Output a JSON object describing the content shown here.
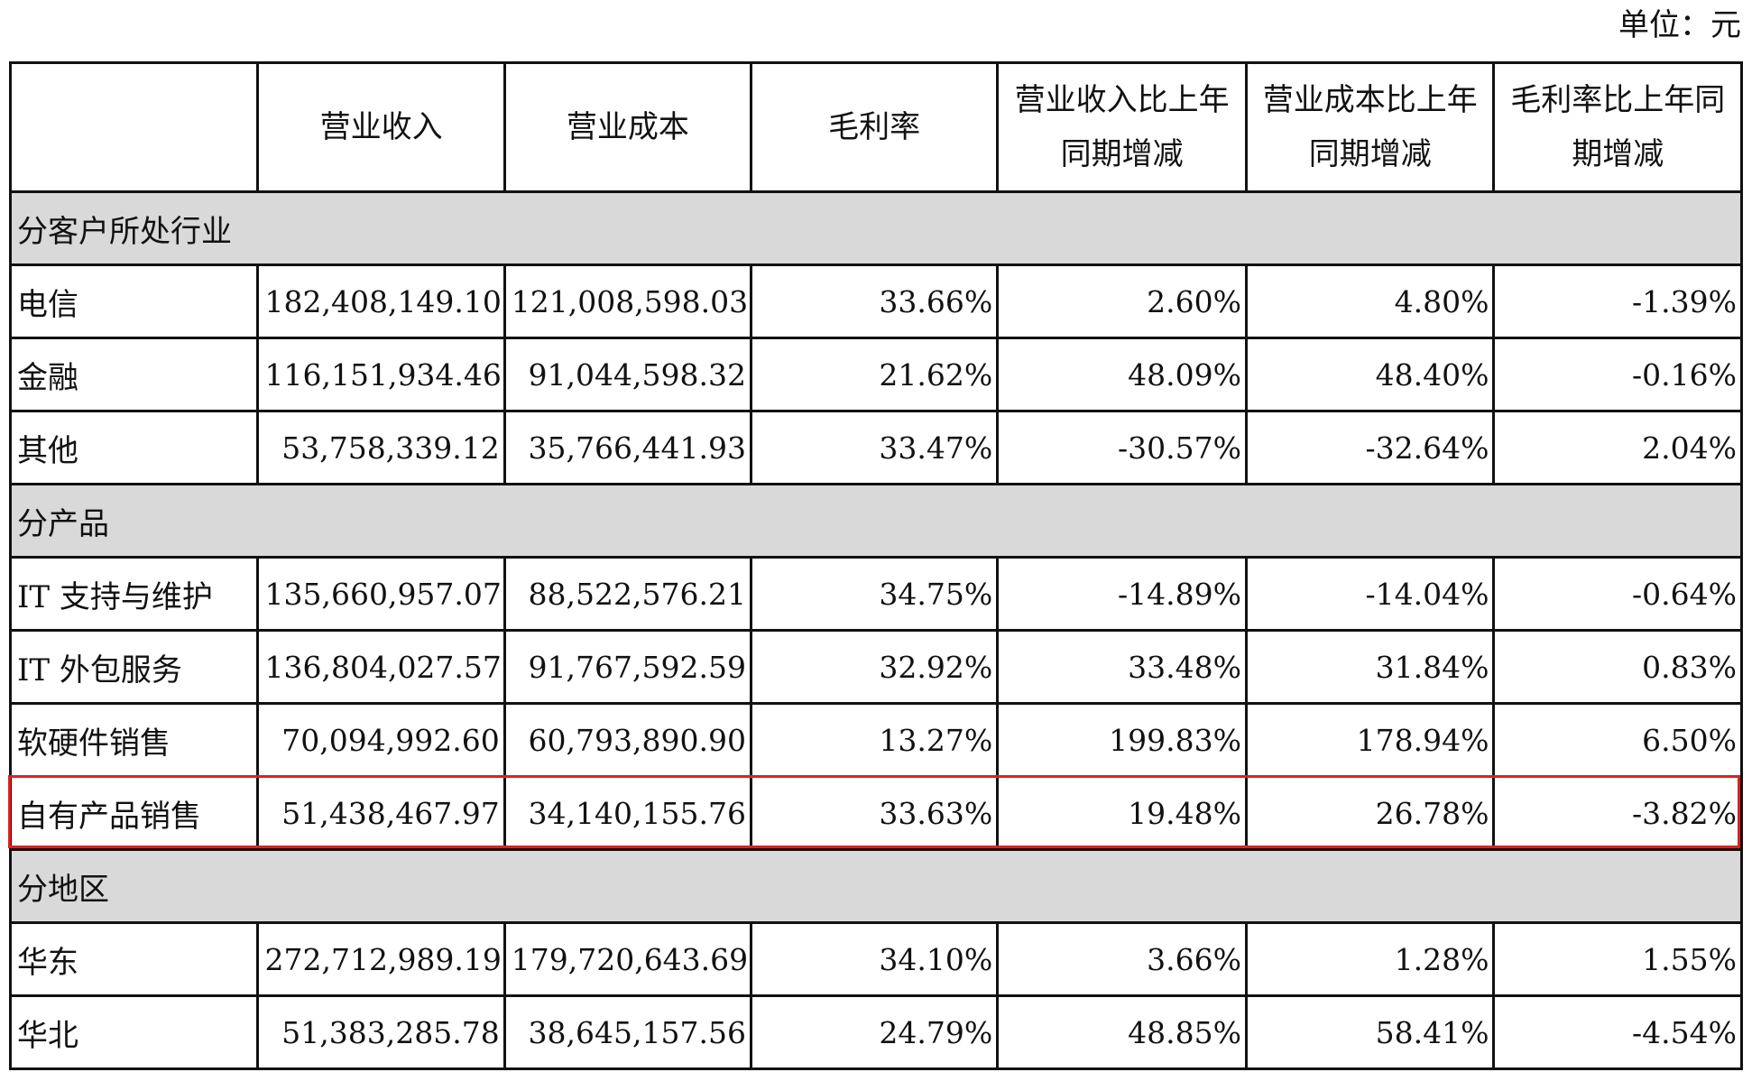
{
  "unit_note": "单位：元",
  "columns": [
    "",
    "营业收入",
    "营业成本",
    "毛利率",
    "营业收入比上年同期增减",
    "营业成本比上年同期增减",
    "毛利率比上年同期增减"
  ],
  "header_lines": [
    [
      ""
    ],
    [
      "营业收入"
    ],
    [
      "营业成本"
    ],
    [
      "毛利率"
    ],
    [
      "营业收入比上年",
      "同期增减"
    ],
    [
      "营业成本比上年",
      "同期增减"
    ],
    [
      "毛利率比上年同",
      "期增减"
    ]
  ],
  "sections": [
    {
      "title": "分客户所处行业",
      "rows": [
        [
          "电信",
          "182,408,149.10",
          "121,008,598.03",
          "33.66%",
          "2.60%",
          "4.80%",
          "-1.39%"
        ],
        [
          "金融",
          "116,151,934.46",
          "91,044,598.32",
          "21.62%",
          "48.09%",
          "48.40%",
          "-0.16%"
        ],
        [
          "其他",
          "53,758,339.12",
          "35,766,441.93",
          "33.47%",
          "-30.57%",
          "-32.64%",
          "2.04%"
        ]
      ]
    },
    {
      "title": "分产品",
      "rows": [
        [
          "IT 支持与维护",
          "135,660,957.07",
          "88,522,576.21",
          "34.75%",
          "-14.89%",
          "-14.04%",
          "-0.64%"
        ],
        [
          "IT 外包服务",
          "136,804,027.57",
          "91,767,592.59",
          "32.92%",
          "33.48%",
          "31.84%",
          "0.83%"
        ],
        [
          "软硬件销售",
          "70,094,992.60",
          "60,793,890.90",
          "13.27%",
          "199.83%",
          "178.94%",
          "6.50%"
        ],
        [
          "自有产品销售",
          "51,438,467.97",
          "34,140,155.76",
          "33.63%",
          "19.48%",
          "26.78%",
          "-3.82%"
        ]
      ]
    },
    {
      "title": "分地区",
      "rows": [
        [
          "华东",
          "272,712,989.19",
          "179,720,643.69",
          "34.10%",
          "3.66%",
          "1.28%",
          "1.55%"
        ],
        [
          "华北",
          "51,383,285.78",
          "38,645,157.56",
          "24.79%",
          "48.85%",
          "58.41%",
          "-4.54%"
        ]
      ]
    }
  ],
  "highlight": {
    "row_label": "自有产品销售",
    "color": "#e02020"
  },
  "colors": {
    "section_bg": "#d9d9d9",
    "border": "#111111",
    "text": "#111111"
  }
}
